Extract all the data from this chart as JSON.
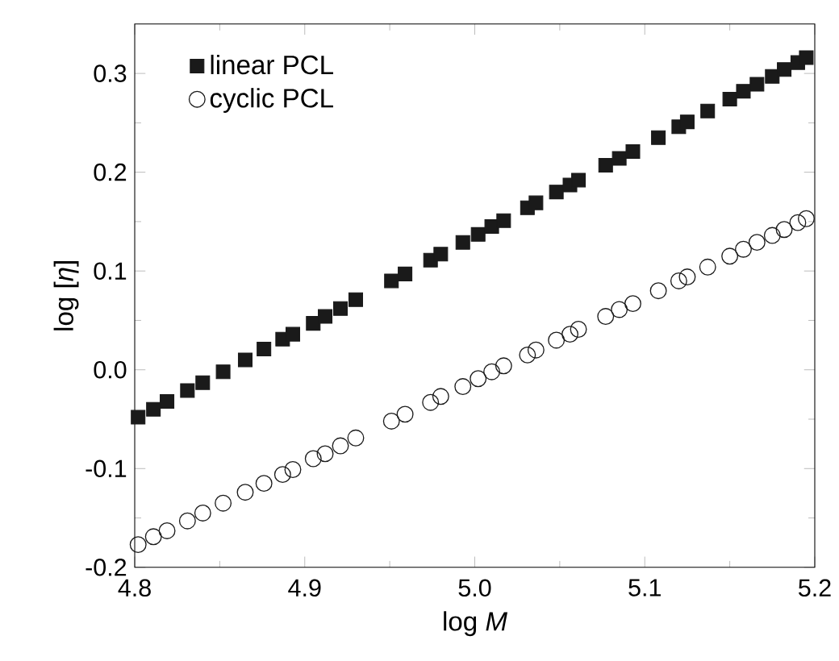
{
  "chart_data": {
    "type": "scatter",
    "xlabel": "log *M*",
    "ylabel": "log [*η*]",
    "xlim": [
      4.8,
      5.2
    ],
    "ylim": [
      -0.2,
      0.35
    ],
    "xticks": [
      4.8,
      4.9,
      {
        "value": 5.0,
        "label": "5.0"
      },
      5.1,
      5.2
    ],
    "yticks": [
      -0.2,
      -0.1,
      {
        "value": 0,
        "label": "0.0"
      },
      0.1,
      0.2,
      0.3
    ],
    "grid": false,
    "legend": "top left",
    "x": [
      4.802,
      4.811,
      4.819,
      4.831,
      4.84,
      4.852,
      4.865,
      4.876,
      4.887,
      4.893,
      4.905,
      4.912,
      4.921,
      4.93,
      4.951,
      4.959,
      4.974,
      4.98,
      4.993,
      5.002,
      5.01,
      5.017,
      5.031,
      5.036,
      5.048,
      5.056,
      5.061,
      5.077,
      5.085,
      5.093,
      5.108,
      5.12,
      5.125,
      5.137,
      5.15,
      5.158,
      5.166,
      5.175,
      5.182,
      5.19,
      5.195
    ],
    "series": [
      {
        "name": "linear PCL",
        "color": "#1a1a1a",
        "marker": "square",
        "values": [
          -0.048,
          -0.04,
          -0.032,
          -0.021,
          -0.013,
          -0.002,
          0.01,
          0.021,
          0.031,
          0.036,
          0.047,
          0.054,
          0.062,
          0.071,
          0.09,
          0.097,
          0.111,
          0.117,
          0.129,
          0.137,
          0.145,
          0.151,
          0.164,
          0.169,
          0.18,
          0.187,
          0.192,
          0.207,
          0.214,
          0.221,
          0.235,
          0.246,
          0.251,
          0.262,
          0.274,
          0.282,
          0.289,
          0.297,
          0.304,
          0.311,
          0.316
        ]
      },
      {
        "name": "cyclic PCL",
        "color": "#1a1a1a",
        "marker": "circle",
        "values": [
          -0.177,
          -0.169,
          -0.163,
          -0.153,
          -0.145,
          -0.135,
          -0.124,
          -0.115,
          -0.106,
          -0.101,
          -0.09,
          -0.085,
          -0.077,
          -0.069,
          -0.052,
          -0.045,
          -0.033,
          -0.027,
          -0.017,
          -0.009,
          -0.002,
          0.004,
          0.015,
          0.02,
          0.03,
          0.036,
          0.041,
          0.054,
          0.061,
          0.067,
          0.08,
          0.09,
          0.094,
          0.104,
          0.115,
          0.122,
          0.129,
          0.136,
          0.142,
          0.149,
          0.153
        ]
      }
    ]
  }
}
